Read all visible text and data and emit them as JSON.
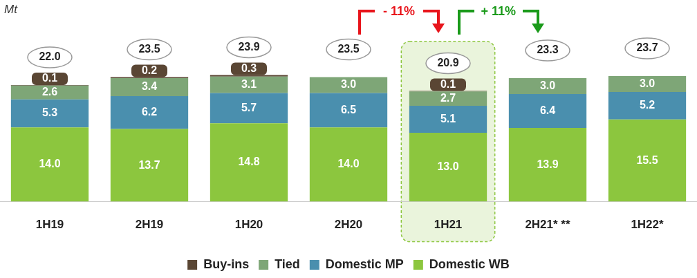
{
  "chart_data": {
    "type": "bar",
    "stacked": true,
    "categories": [
      "1H19",
      "2H19",
      "1H20",
      "2H20",
      "1H21",
      "2H21* **",
      "1H22*"
    ],
    "series": [
      {
        "name": "Domestic WB",
        "color": "#8cc63e",
        "values": [
          14.0,
          13.7,
          14.8,
          14.0,
          13.0,
          13.9,
          15.5
        ],
        "value_labels": [
          "14.0",
          "13.7",
          "14.8",
          "14.0",
          "13.0",
          "13.9",
          "15.5"
        ]
      },
      {
        "name": "Domestic MP",
        "color": "#4a8fae",
        "values": [
          5.3,
          6.2,
          5.7,
          6.5,
          5.1,
          6.4,
          5.2
        ],
        "value_labels": [
          "5.3",
          "6.2",
          "5.7",
          "6.5",
          "5.1",
          "6.4",
          "5.2"
        ]
      },
      {
        "name": "Tied",
        "color": "#7ea677",
        "values": [
          2.6,
          3.4,
          3.1,
          3.0,
          2.7,
          3.0,
          3.0
        ],
        "value_labels": [
          "2.6",
          "3.4",
          "3.1",
          "3.0",
          "2.7",
          "3.0",
          "3.0"
        ]
      },
      {
        "name": "Buy-ins",
        "color": "#5a4634",
        "values": [
          0.1,
          0.2,
          0.3,
          null,
          0.1,
          null,
          null
        ],
        "value_labels": [
          "0.1",
          "0.2",
          "0.3",
          null,
          "0.1",
          null,
          null
        ]
      }
    ],
    "totals": [
      "22.0",
      "23.5",
      "23.9",
      "23.5",
      "20.9",
      "23.3",
      "23.7"
    ],
    "annotations": [
      "Mt",
      "- 11%",
      "+ 11%"
    ],
    "bands": [
      {
        "axis": "x",
        "from": "1H21",
        "to": "1H21",
        "color": "#eaf4dc"
      }
    ],
    "legend": "bottom",
    "grid": false
  }
}
